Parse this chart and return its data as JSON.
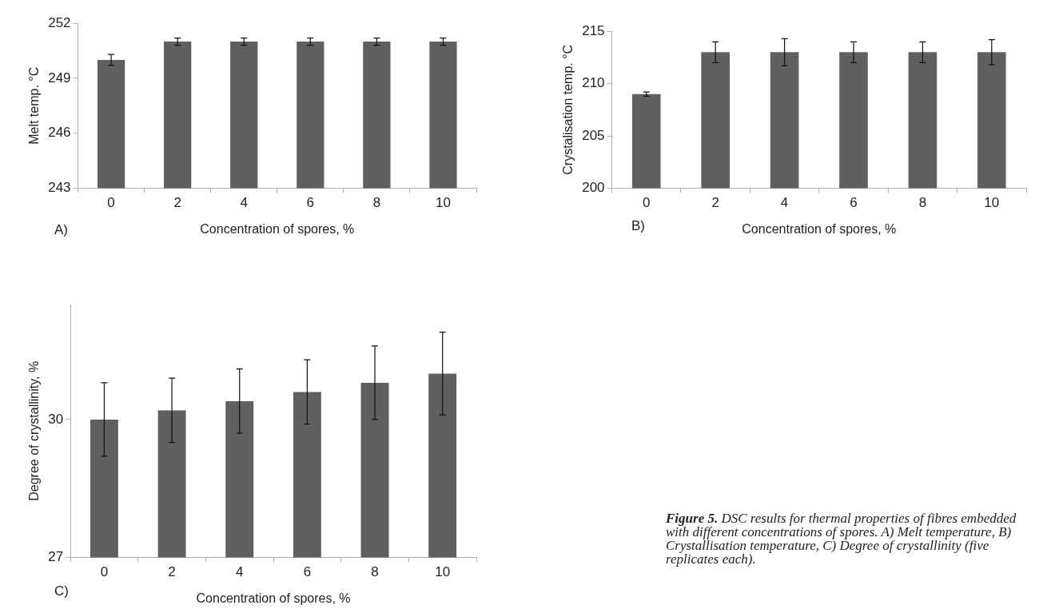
{
  "chart_data": [
    {
      "type": "bar",
      "ylabel": "Melt temp. °C",
      "xlabel": "Concentration of spores, %",
      "annotations": [
        "A)"
      ],
      "categories": [
        "0",
        "2",
        "4",
        "6",
        "8",
        "10"
      ],
      "values": [
        250,
        251,
        251,
        251,
        251,
        251
      ],
      "errors": [
        0.3,
        0.2,
        0.2,
        0.2,
        0.2,
        0.2
      ],
      "color": "#606060",
      "ylim": [
        243,
        252
      ],
      "yticks": [
        243,
        246,
        249,
        252
      ],
      "grid": false,
      "legend": false
    },
    {
      "type": "bar",
      "ylabel": "Crystalisation temp. °C",
      "xlabel": "Concentration of spores, %",
      "annotations": [
        "B)"
      ],
      "categories": [
        "0",
        "2",
        "4",
        "6",
        "8",
        "10"
      ],
      "values": [
        209,
        213,
        213,
        213,
        213,
        213
      ],
      "errors": [
        0.2,
        1,
        1.3,
        1,
        1,
        1.2
      ],
      "color": "#606060",
      "ylim": [
        200,
        215
      ],
      "yticks": [
        200,
        205,
        210,
        215
      ],
      "grid": false,
      "legend": false
    },
    {
      "type": "bar",
      "ylabel": "Degree of crystallinity, %",
      "xlabel": "Concentration of spores, %",
      "annotations": [
        "C)"
      ],
      "categories": [
        "0",
        "2",
        "4",
        "6",
        "8",
        "10"
      ],
      "values": [
        30,
        30.2,
        30.4,
        30.6,
        30.8,
        31
      ],
      "errors": [
        0.8,
        0.7,
        0.7,
        0.7,
        0.8,
        0.9
      ],
      "color": "#606060",
      "ylim": [
        27,
        32.5
      ],
      "yticks": [
        27,
        30
      ],
      "grid": false,
      "legend": false
    },
    {
      "type": "other",
      "annotations": [
        "Figure 5.",
        "DSC results for thermal properties of fibres embedded with different concentrations of spores. A) Melt temperature, B) Crystallisation temperature, C) Degree of crystallinity (five replicates each)."
      ]
    }
  ]
}
